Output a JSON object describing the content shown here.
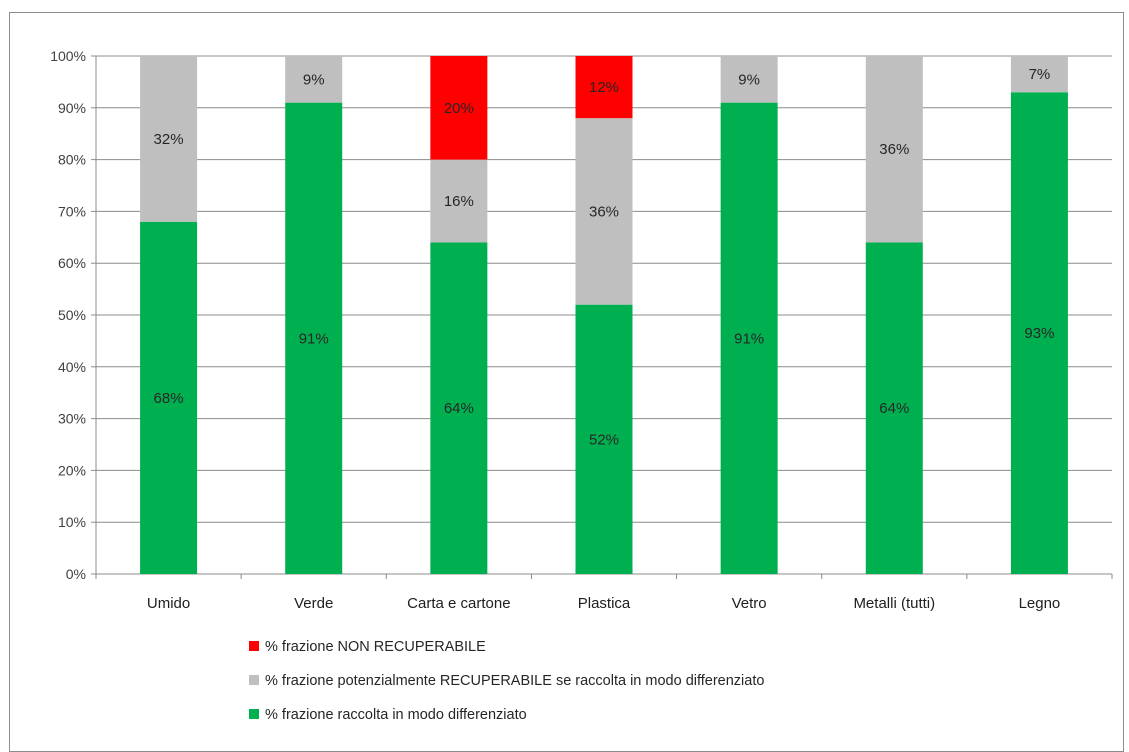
{
  "chart_data": {
    "type": "bar",
    "stacked": true,
    "categories": [
      "Umido",
      "Verde",
      "Carta e cartone",
      "Plastica",
      "Vetro",
      "Metalli (tutti)",
      "Legno"
    ],
    "series": [
      {
        "name": "% frazione raccolta in modo differenziato",
        "color": "#00b050",
        "values": [
          68,
          91,
          64,
          52,
          91,
          64,
          93
        ],
        "labels": [
          "68%",
          "91%",
          "64%",
          "52%",
          "91%",
          "64%",
          "93%"
        ]
      },
      {
        "name": "% frazione potenzialmente RECUPERABILE se raccolta in modo differenziato",
        "color": "#bfbfbf",
        "values": [
          32,
          9,
          16,
          36,
          9,
          36,
          7
        ],
        "labels": [
          "32%",
          "9%",
          "16%",
          "36%",
          "9%",
          "36%",
          "7%"
        ]
      },
      {
        "name": "% frazione NON RECUPERABILE",
        "color": "#ff0000",
        "values": [
          0,
          0,
          20,
          12,
          0,
          0,
          0
        ],
        "labels": [
          "",
          "",
          "20%",
          "12%",
          "",
          "",
          ""
        ]
      }
    ],
    "y_ticks": [
      "0%",
      "10%",
      "20%",
      "30%",
      "40%",
      "50%",
      "60%",
      "70%",
      "80%",
      "90%",
      "100%"
    ],
    "ylim": [
      0,
      100
    ],
    "grid": true,
    "legend_position": "bottom",
    "legend_order": [
      2,
      1,
      0
    ]
  }
}
